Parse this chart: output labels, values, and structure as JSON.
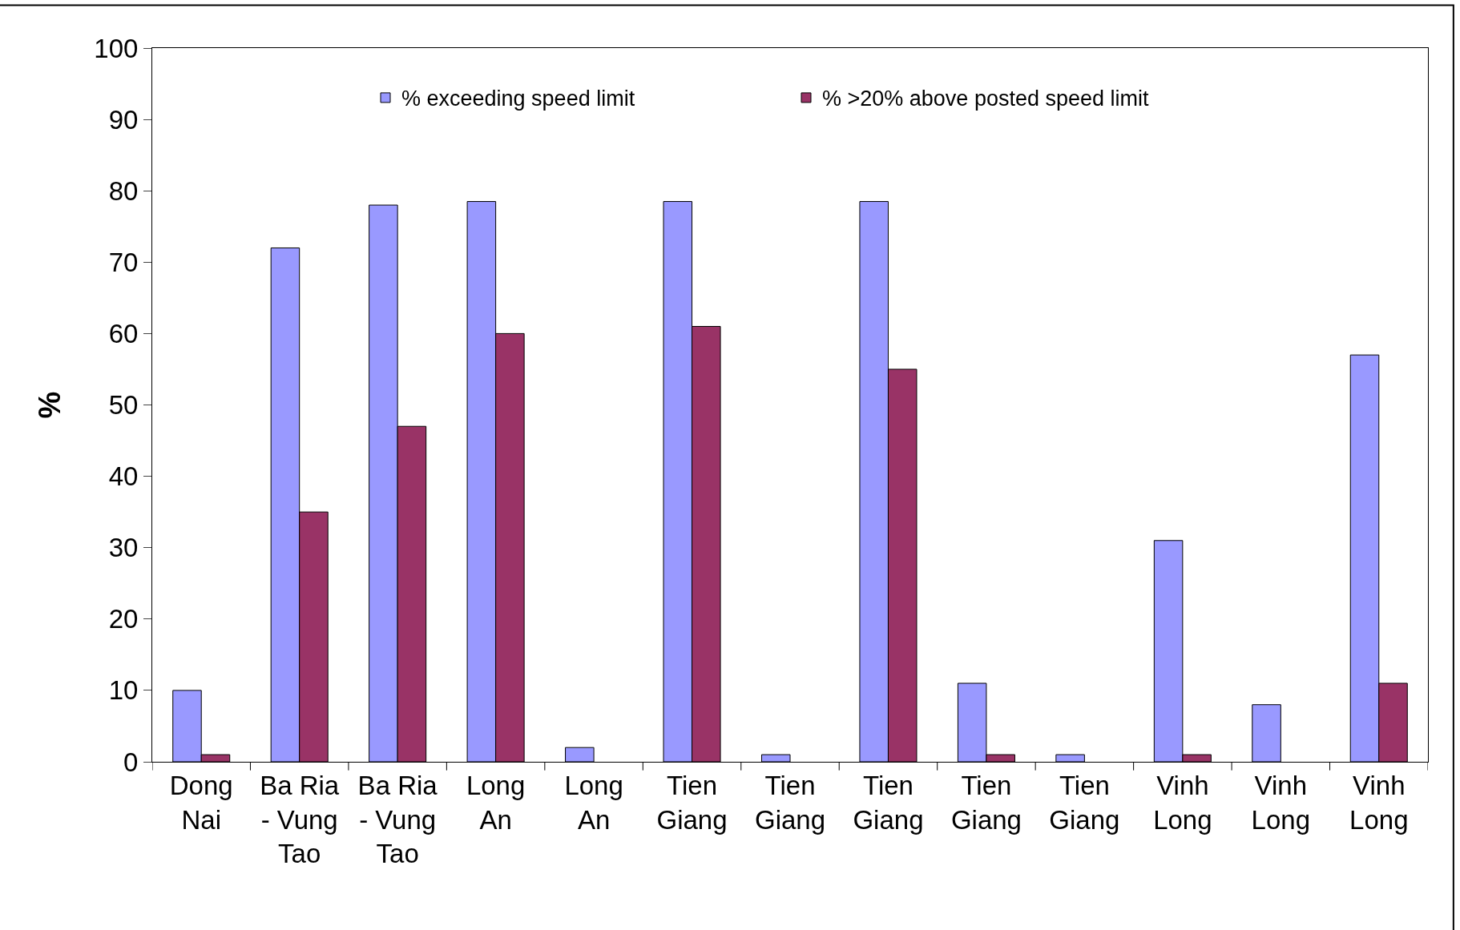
{
  "chart_data": {
    "type": "bar",
    "ylabel": "%",
    "categories": [
      "Dong Nai",
      "Ba Ria - Vung Tao",
      "Ba Ria - Vung Tao",
      "Long An",
      "Long An",
      "Tien Giang",
      "Tien Giang",
      "Tien Giang",
      "Tien Giang",
      "Tien Giang",
      "Vinh Long",
      "Vinh Long",
      "Vinh Long"
    ],
    "series": [
      {
        "name": "% exceeding speed limit",
        "color": "#9999ff",
        "values": [
          10,
          72,
          78,
          78.5,
          2,
          78.5,
          1,
          78.5,
          11,
          1,
          31,
          8,
          57
        ]
      },
      {
        "name": "% >20% above posted speed limit",
        "color": "#993366",
        "values": [
          1,
          35,
          47,
          60,
          null,
          61,
          null,
          55,
          1,
          null,
          1,
          null,
          11
        ]
      }
    ],
    "ylim": [
      0,
      100
    ],
    "yticks": [
      0,
      10,
      20,
      30,
      40,
      50,
      60,
      70,
      80,
      90,
      100
    ],
    "grid": false,
    "legend": "top"
  }
}
